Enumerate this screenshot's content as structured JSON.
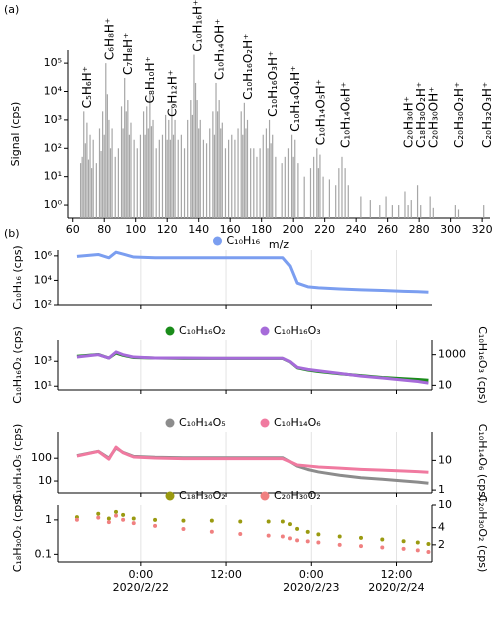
{
  "chart_data": [
    {
      "label": "(a)",
      "type": "bar",
      "xlabel": "m/z",
      "ylabel": "Signal (cps)",
      "color": "#a6a6a6",
      "log_y": true,
      "xlim": [
        57,
        325
      ],
      "xticks": [
        60,
        80,
        100,
        120,
        140,
        160,
        180,
        200,
        220,
        240,
        260,
        280,
        300,
        320
      ],
      "ylim": [
        0.35,
        290000
      ],
      "yticks": [
        {
          "value": 1,
          "label": "10⁰"
        },
        {
          "value": 10,
          "label": "10¹"
        },
        {
          "value": 100,
          "label": "10²"
        },
        {
          "value": 1000,
          "label": "10³"
        },
        {
          "value": 10000,
          "label": "10⁴"
        },
        {
          "value": 100000,
          "label": "10⁵"
        }
      ],
      "x": [
        65,
        66,
        67,
        68,
        69,
        70,
        71,
        72,
        73,
        75,
        77,
        78,
        79,
        80,
        81,
        82,
        83,
        84,
        85,
        87,
        89,
        91,
        92,
        93,
        94,
        95,
        96,
        97,
        99,
        101,
        103,
        105,
        106,
        107,
        108,
        109,
        110,
        111,
        113,
        115,
        117,
        119,
        120,
        121,
        122,
        123,
        124,
        125,
        127,
        129,
        131,
        133,
        135,
        136,
        137,
        138,
        139,
        140,
        141,
        143,
        145,
        147,
        149,
        150,
        151,
        152,
        153,
        154,
        155,
        157,
        159,
        161,
        163,
        165,
        167,
        168,
        169,
        170,
        171,
        173,
        175,
        177,
        179,
        181,
        183,
        184,
        185,
        186,
        187,
        189,
        193,
        195,
        197,
        199,
        200,
        201,
        203,
        207,
        211,
        213,
        215,
        216,
        217,
        219,
        223,
        227,
        229,
        231,
        233,
        235,
        243,
        249,
        255,
        259,
        263,
        267,
        271,
        273,
        275,
        279,
        281,
        287,
        289,
        303,
        305,
        321
      ],
      "values": [
        30,
        50,
        2000,
        150,
        800,
        40,
        300,
        20,
        200,
        30,
        500,
        80,
        2000,
        300,
        100000,
        8000,
        1000,
        100,
        500,
        50,
        100,
        3000,
        500,
        30000,
        2000,
        5000,
        300,
        800,
        200,
        100,
        300,
        2000,
        300,
        3000,
        500,
        8000,
        600,
        1000,
        100,
        200,
        300,
        1500,
        200,
        1000,
        200,
        3000,
        300,
        1000,
        200,
        300,
        100,
        1000,
        5000,
        1500,
        200000,
        20000,
        5000,
        500,
        1000,
        200,
        150,
        500,
        2000,
        300,
        20000,
        2000,
        5000,
        500,
        800,
        100,
        200,
        300,
        200,
        500,
        2000,
        300,
        4000,
        500,
        1000,
        100,
        100,
        50,
        100,
        300,
        500,
        100,
        1000,
        150,
        300,
        50,
        30,
        50,
        100,
        300,
        50,
        200,
        30,
        10,
        20,
        50,
        100,
        20,
        60,
        10,
        8,
        5,
        20,
        50,
        20,
        5,
        2,
        1.5,
        1,
        2,
        1,
        1,
        3,
        1,
        1.5,
        5,
        1,
        2,
        0.8,
        1,
        0.7,
        1
      ],
      "annotations": [
        {
          "text": "C₅H₆H⁺",
          "x": 67
        },
        {
          "text": "C₆H₈H⁺",
          "x": 81
        },
        {
          "text": "C₇H₈H⁺",
          "x": 93
        },
        {
          "text": "C₈H₁₀H⁺",
          "x": 107
        },
        {
          "text": "C₉H₁₂H⁺",
          "x": 121
        },
        {
          "text": "C₁₀H₁₆H⁺",
          "x": 137
        },
        {
          "text": "C₁₀H₁₄OH⁺",
          "x": 151
        },
        {
          "text": "C₁₀H₁₆O₂H⁺",
          "x": 169
        },
        {
          "text": "C₁₀H₁₆O₃H⁺",
          "x": 185
        },
        {
          "text": "C₁₀H₁₄O₄H⁺",
          "x": 199
        },
        {
          "text": "C₁₀H₁₄O₅H⁺",
          "x": 215
        },
        {
          "text": "C₁₀H₁₄O₆H⁺",
          "x": 231
        },
        {
          "text": "C₂₀H₃₀H⁺",
          "x": 271
        },
        {
          "text": "C₁₈H₃₀O₂H⁺",
          "x": 279
        },
        {
          "text": "C₂₀H₃₀OH⁺",
          "x": 287
        },
        {
          "text": "C₂₀H₃₀O₂H⁺",
          "x": 303
        },
        {
          "text": "C₂₀H₃₂O₃H⁺",
          "x": 321
        }
      ]
    },
    {
      "label": "(b)",
      "type": "line",
      "ylabel": "C₁₀H₁₆ (cps)",
      "log_y": true,
      "grid": true,
      "xlim": [
        "2020-02-21T12:20",
        "2020-02-23T17:00"
      ],
      "x": [
        "2020-02-21T15:00",
        "2020-02-21T18:00",
        "2020-02-21T19:30",
        "2020-02-21T20:30",
        "2020-02-21T21:30",
        "2020-02-21T23:00",
        "2020-02-22T02:00",
        "2020-02-22T06:00",
        "2020-02-22T10:00",
        "2020-02-22T14:00",
        "2020-02-22T18:00",
        "2020-02-22T20:00",
        "2020-02-22T21:00",
        "2020-02-22T22:00",
        "2020-02-22T23:30",
        "2020-02-23T01:00",
        "2020-02-23T04:00",
        "2020-02-23T07:00",
        "2020-02-23T10:00",
        "2020-02-23T13:00",
        "2020-02-23T15:00",
        "2020-02-23T16:30"
      ],
      "ylim": [
        100,
        3000000
      ],
      "yticks": [
        {
          "value": 100,
          "label": "10²"
        },
        {
          "value": 10000,
          "label": "10⁴"
        },
        {
          "value": 1000000,
          "label": "10⁶"
        }
      ],
      "series": [
        {
          "name": "C₁₀H₁₆",
          "color": "#7b9ef0",
          "values": [
            900000,
            1300000,
            700000,
            2000000,
            1400000,
            800000,
            700000,
            700000,
            700000,
            700000,
            700000,
            700000,
            150000,
            6000,
            3000,
            2500,
            2000,
            1700,
            1500,
            1300,
            1200,
            1100
          ]
        }
      ]
    },
    {
      "type": "line",
      "ylabel": "C₁₀H₁₆O₂ (cps)",
      "y2label": "C₁₀H₁₆O₃ (cps)",
      "log_y": true,
      "grid": true,
      "xlim": [
        "2020-02-21T12:20",
        "2020-02-23T17:00"
      ],
      "x": [
        "2020-02-21T15:00",
        "2020-02-21T18:00",
        "2020-02-21T19:30",
        "2020-02-21T20:30",
        "2020-02-21T21:30",
        "2020-02-21T23:00",
        "2020-02-22T02:00",
        "2020-02-22T06:00",
        "2020-02-22T10:00",
        "2020-02-22T14:00",
        "2020-02-22T18:00",
        "2020-02-22T20:00",
        "2020-02-22T21:00",
        "2020-02-22T22:00",
        "2020-02-22T23:30",
        "2020-02-23T01:00",
        "2020-02-23T04:00",
        "2020-02-23T07:00",
        "2020-02-23T10:00",
        "2020-02-23T13:00",
        "2020-02-23T15:00",
        "2020-02-23T16:30"
      ],
      "ylim": [
        5,
        50000
      ],
      "yticks": [
        {
          "value": 10,
          "label": "10¹"
        },
        {
          "value": 1000,
          "label": "10³"
        }
      ],
      "y2lim": [
        5,
        9000
      ],
      "y2ticks": [
        10,
        1000
      ],
      "series": [
        {
          "name": "C₁₀H₁₆O₂",
          "color": "#1a8c1a",
          "values": [
            2500,
            3500,
            1800,
            4500,
            3000,
            2000,
            1800,
            1700,
            1700,
            1700,
            1700,
            1700,
            900,
            300,
            200,
            150,
            100,
            70,
            50,
            40,
            35,
            30
          ]
        },
        {
          "name": "C₁₀H₁₆O₃",
          "color": "#a66bd9",
          "axis": "y2",
          "values": [
            700,
            1000,
            600,
            1500,
            1000,
            700,
            600,
            600,
            580,
            580,
            580,
            580,
            350,
            150,
            110,
            90,
            60,
            40,
            30,
            22,
            18,
            14
          ]
        }
      ]
    },
    {
      "type": "line",
      "ylabel": "C₁₀H₁₄O₅ (cps)",
      "y2label": "C₁₀H₁₄O₆ (cps)",
      "log_y": true,
      "grid": true,
      "xlim": [
        "2020-02-21T12:20",
        "2020-02-23T17:00"
      ],
      "x": [
        "2020-02-21T15:00",
        "2020-02-21T18:00",
        "2020-02-21T19:30",
        "2020-02-21T20:30",
        "2020-02-21T21:30",
        "2020-02-21T23:00",
        "2020-02-22T02:00",
        "2020-02-22T06:00",
        "2020-02-22T10:00",
        "2020-02-22T14:00",
        "2020-02-22T18:00",
        "2020-02-22T20:00",
        "2020-02-22T21:00",
        "2020-02-22T22:00",
        "2020-02-22T23:30",
        "2020-02-23T01:00",
        "2020-02-23T04:00",
        "2020-02-23T07:00",
        "2020-02-23T10:00",
        "2020-02-23T13:00",
        "2020-02-23T15:00",
        "2020-02-23T16:30"
      ],
      "ylim": [
        3,
        1400
      ],
      "yticks": [
        10,
        100
      ],
      "y2lim": [
        0.8,
        90
      ],
      "y2ticks": [
        1,
        10
      ],
      "series": [
        {
          "name": "C₁₀H₁₄O₅",
          "color": "#8c8c8c",
          "values": [
            130,
            200,
            100,
            280,
            180,
            120,
            110,
            105,
            105,
            105,
            105,
            105,
            70,
            45,
            32,
            25,
            18,
            14,
            12,
            10,
            9,
            8
          ]
        },
        {
          "name": "C₁₀H₁₄O₆",
          "color": "#f07aa0",
          "axis": "y2",
          "values": [
            14,
            20,
            11,
            28,
            18,
            13,
            12,
            11.5,
            11.5,
            11.5,
            11.5,
            11.5,
            9,
            7,
            6.5,
            6,
            5.5,
            5,
            4.7,
            4.4,
            4.2,
            4
          ]
        }
      ]
    },
    {
      "type": "scatter",
      "ylabel": "C₁₈H₃₀O₂ (cps)",
      "y2label": "C₂₀H₃₀O₂ (cps)",
      "log_y": true,
      "grid": true,
      "xlim": [
        "2020-02-21T12:20",
        "2020-02-23T17:00"
      ],
      "xticks": [
        {
          "value": "2020-02-22T00:00",
          "label": "0:00"
        },
        {
          "value": "2020-02-22T12:00",
          "label": "12:00"
        },
        {
          "value": "2020-02-23T00:00",
          "label": "0:00"
        },
        {
          "value": "2020-02-23T12:00",
          "label": "12:00"
        }
      ],
      "xtick_dates": [
        "2020/2/22",
        null,
        "2020/2/23",
        "2020/2/24"
      ],
      "x": [
        "2020-02-21T15:00",
        "2020-02-21T18:00",
        "2020-02-21T19:30",
        "2020-02-21T20:30",
        "2020-02-21T21:30",
        "2020-02-21T23:00",
        "2020-02-22T02:00",
        "2020-02-22T06:00",
        "2020-02-22T10:00",
        "2020-02-22T14:00",
        "2020-02-22T18:00",
        "2020-02-22T20:00",
        "2020-02-22T21:00",
        "2020-02-22T22:00",
        "2020-02-22T23:30",
        "2020-02-23T01:00",
        "2020-02-23T04:00",
        "2020-02-23T07:00",
        "2020-02-23T10:00",
        "2020-02-23T13:00",
        "2020-02-23T15:00",
        "2020-02-23T16:30"
      ],
      "ylim": [
        0.06,
        2.7
      ],
      "yticks": [
        0.1,
        1
      ],
      "y2lim": [
        1,
        10
      ],
      "y2ticks": [
        2,
        4,
        10
      ],
      "series": [
        {
          "name": "C₁₈H₃₀O₂",
          "color": "#9a9a10",
          "values": [
            1.2,
            1.5,
            1.1,
            1.7,
            1.4,
            1.1,
            1.0,
            0.95,
            0.95,
            0.9,
            0.9,
            0.9,
            0.75,
            0.55,
            0.45,
            0.38,
            0.33,
            0.3,
            0.27,
            0.24,
            0.22,
            0.2
          ]
        },
        {
          "name": "C₂₀H₃₀O₂",
          "color": "#f08080",
          "axis": "y2",
          "values": [
            5.5,
            6,
            5,
            6.5,
            5.5,
            4.8,
            4.3,
            3.8,
            3.4,
            3.1,
            2.9,
            2.8,
            2.6,
            2.4,
            2.3,
            2.2,
            2.0,
            1.9,
            1.8,
            1.7,
            1.6,
            1.5
          ]
        }
      ]
    }
  ]
}
